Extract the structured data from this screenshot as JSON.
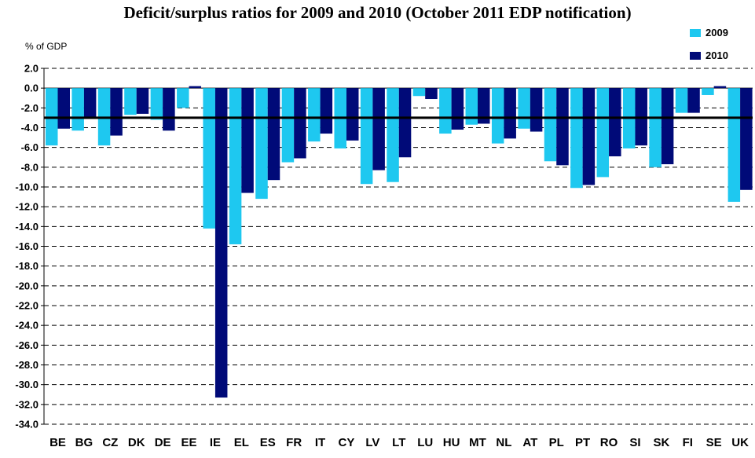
{
  "chart_data": {
    "type": "bar",
    "title": "Deficit/surplus ratios for 2009 and 2010 (October 2011 EDP notification)",
    "ylabel": "% of GDP",
    "xlabel": "",
    "ylim": [
      -34,
      2
    ],
    "ytick_step": 2,
    "grid": "dashed horizontal",
    "reference_line": -3,
    "legend_position": "top-right",
    "categories": [
      "BE",
      "BG",
      "CZ",
      "DK",
      "DE",
      "EE",
      "IE",
      "EL",
      "ES",
      "FR",
      "IT",
      "CY",
      "LV",
      "LT",
      "LU",
      "HU",
      "MT",
      "NL",
      "AT",
      "PL",
      "PT",
      "RO",
      "SI",
      "SK",
      "FI",
      "SE",
      "UK"
    ],
    "series": [
      {
        "name": "2009",
        "color": "#1ec8f0",
        "values": [
          -5.8,
          -4.3,
          -5.8,
          -2.7,
          -3.2,
          -2.0,
          -14.2,
          -15.8,
          -11.2,
          -7.5,
          -5.4,
          -6.1,
          -9.7,
          -9.5,
          -0.8,
          -4.6,
          -3.7,
          -5.6,
          -4.1,
          -7.4,
          -10.1,
          -9.0,
          -6.1,
          -8.0,
          -2.5,
          -0.7,
          -11.5
        ]
      },
      {
        "name": "2010",
        "color": "#000a78",
        "values": [
          -4.1,
          -3.1,
          -4.8,
          -2.6,
          -4.3,
          0.2,
          -31.3,
          -10.6,
          -9.3,
          -7.1,
          -4.6,
          -5.3,
          -8.3,
          -7.0,
          -1.1,
          -4.2,
          -3.6,
          -5.1,
          -4.4,
          -7.8,
          -9.8,
          -6.9,
          -5.8,
          -7.7,
          -2.5,
          0.2,
          -10.3
        ]
      }
    ]
  }
}
